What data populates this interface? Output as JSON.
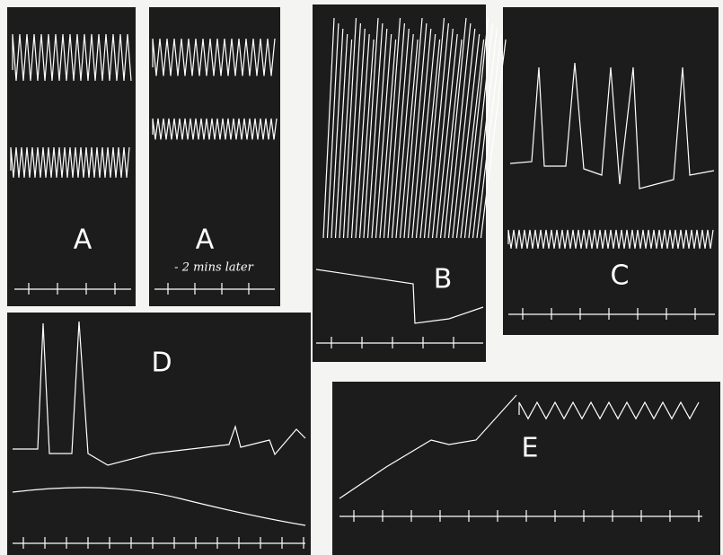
{
  "panels": [
    {
      "label": "A"
    },
    {
      "label": "A",
      "note": "- 2 mins later"
    },
    {
      "label": "B"
    },
    {
      "label": "C"
    },
    {
      "label": "D"
    },
    {
      "label": "E"
    }
  ]
}
